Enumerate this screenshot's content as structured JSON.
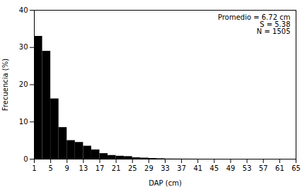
{
  "chart_data": {
    "type": "histogram",
    "bins": [
      1,
      3,
      5,
      7,
      9,
      11,
      13,
      15,
      17,
      19,
      21,
      23,
      25,
      27,
      29,
      31,
      33,
      35,
      37,
      39,
      41,
      43,
      45,
      47,
      49,
      51,
      53,
      55,
      57,
      59,
      61,
      63,
      65
    ],
    "values": [
      33.0,
      29.0,
      16.2,
      8.5,
      5.0,
      4.5,
      3.5,
      2.5,
      1.5,
      1.0,
      0.8,
      0.7,
      0.4,
      0.3,
      0.2,
      0.12,
      0.05,
      0.04,
      0.03,
      0.02,
      0.01,
      0.005,
      0.003,
      0.002,
      0.001,
      0.0,
      0.0,
      0.0,
      0.0,
      0.0,
      0.0,
      0.0
    ],
    "color": "#000000",
    "xlabel": "DAP (cm)",
    "ylabel": "Frecuencia (%)",
    "xlim": [
      1,
      65
    ],
    "ylim": [
      0,
      40
    ],
    "xticks": [
      1,
      5,
      9,
      13,
      17,
      21,
      25,
      29,
      33,
      37,
      41,
      45,
      49,
      53,
      57,
      61,
      65
    ],
    "yticks": [
      0,
      10,
      20,
      30,
      40
    ],
    "annotation": "Promedio = 6.72 cm\nS = 5.38\nN = 1505",
    "grid": false
  }
}
